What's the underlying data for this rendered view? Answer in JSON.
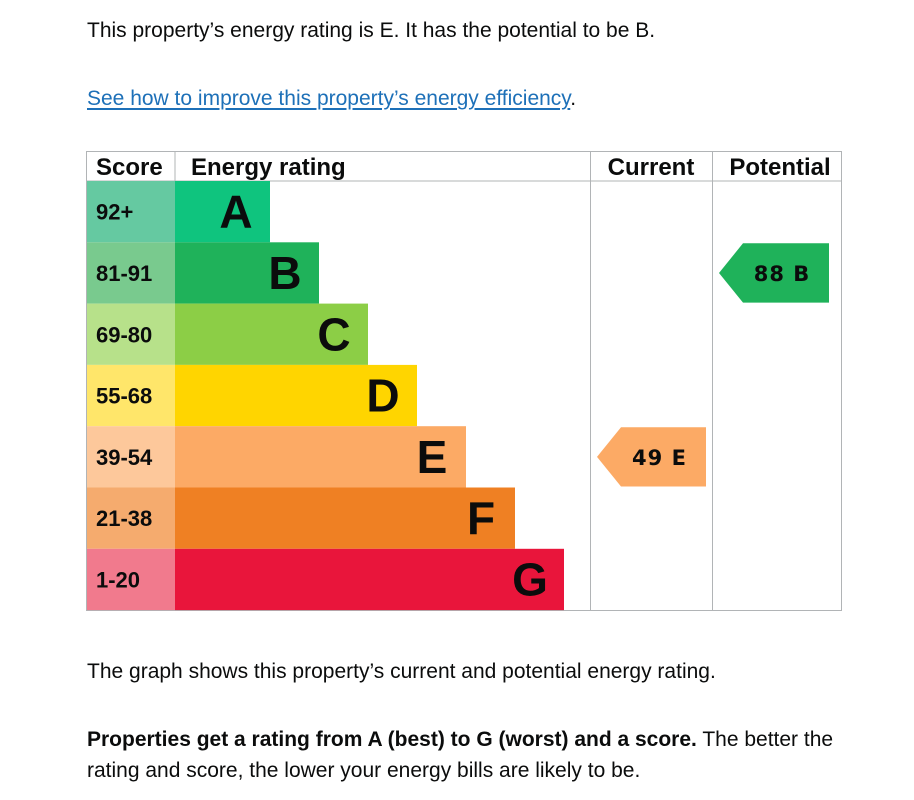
{
  "intro_text": "This property’s energy rating is E. It has the potential to be B.",
  "improve_link": "See how to improve this property’s energy efficiency",
  "improve_suffix": ".",
  "graph_note": "The graph shows this property’s current and potential energy rating.",
  "rating_note": {
    "bold": "Properties get a rating from A (best) to G (worst) and a score.",
    "rest": " The better the rating and score, the lower your energy bills are likely to be."
  },
  "chart_data": {
    "type": "bar",
    "headers": {
      "score": "Score",
      "rating": "Energy rating",
      "current": "Current",
      "potential": "Potential"
    },
    "bands": [
      {
        "letter": "A",
        "score": "92+",
        "color": "#0fc47e",
        "score_bg": "#65c9a1"
      },
      {
        "letter": "B",
        "score": "81-91",
        "color": "#1fb25a",
        "score_bg": "#79ca8e"
      },
      {
        "letter": "C",
        "score": "69-80",
        "color": "#8cce46",
        "score_bg": "#b7e18a"
      },
      {
        "letter": "D",
        "score": "55-68",
        "color": "#ffd500",
        "score_bg": "#ffe66a"
      },
      {
        "letter": "E",
        "score": "39-54",
        "color": "#fcaa65",
        "score_bg": "#fdc89b"
      },
      {
        "letter": "F",
        "score": "21-38",
        "color": "#ef8023",
        "score_bg": "#f5ab6e"
      },
      {
        "letter": "G",
        "score": "1-20",
        "color": "#e9153b",
        "score_bg": "#f17a8d"
      }
    ],
    "current": {
      "value": 49,
      "band": "E",
      "label": "49 E",
      "color": "#fcaa65"
    },
    "potential": {
      "value": 88,
      "band": "B",
      "label": "88 B",
      "color": "#1fb25a"
    }
  }
}
